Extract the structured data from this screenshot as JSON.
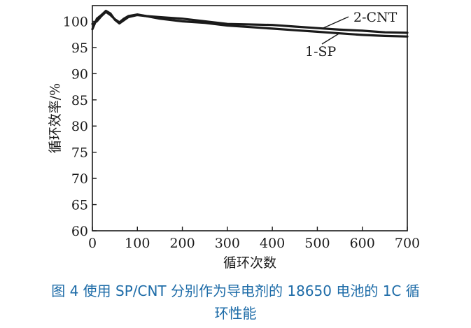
{
  "chart_data": {
    "type": "line",
    "xlabel": "循环次数",
    "ylabel": "循环效率/%",
    "xlim": [
      0,
      700
    ],
    "ylim": [
      60,
      103
    ],
    "xticks": [
      0,
      100,
      200,
      300,
      400,
      500,
      600,
      700
    ],
    "yticks": [
      60,
      65,
      70,
      75,
      80,
      85,
      90,
      95,
      100
    ],
    "grid": false,
    "legend": "inline labels near line ends",
    "series": [
      {
        "name": "2-CNT",
        "x": [
          0,
          10,
          20,
          30,
          40,
          50,
          60,
          70,
          80,
          100,
          120,
          150,
          200,
          250,
          300,
          350,
          400,
          450,
          500,
          550,
          600,
          650,
          700
        ],
        "y": [
          98.5,
          100.5,
          101.2,
          102.0,
          101.5,
          100.3,
          99.6,
          100.2,
          100.8,
          101.2,
          101.0,
          100.8,
          100.5,
          100.0,
          99.5,
          99.4,
          99.3,
          99.0,
          98.7,
          98.4,
          98.2,
          97.9,
          97.8
        ],
        "color": "#1a1a1a"
      },
      {
        "name": "1-SP",
        "x": [
          0,
          10,
          20,
          30,
          40,
          50,
          60,
          70,
          80,
          100,
          120,
          150,
          200,
          250,
          300,
          350,
          400,
          450,
          500,
          550,
          600,
          650,
          700
        ],
        "y": [
          99.5,
          100.0,
          101.0,
          101.8,
          101.2,
          100.4,
          99.8,
          100.5,
          101.0,
          101.3,
          101.0,
          100.5,
          100.0,
          99.7,
          99.2,
          98.9,
          98.6,
          98.3,
          98.0,
          97.7,
          97.4,
          97.2,
          97.1
        ],
        "color": "#1a1a1a"
      }
    ]
  },
  "caption": {
    "line1": "图 4   使用 SP/CNT 分别作为导电剂的 18650 电池的 1C 循",
    "line2": "环性能"
  }
}
